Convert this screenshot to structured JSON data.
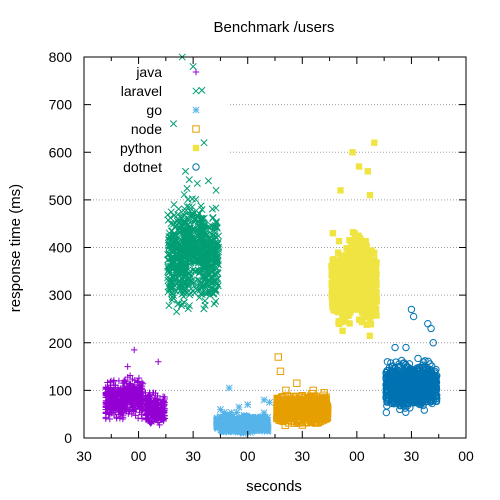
{
  "chart_data": {
    "type": "scatter",
    "title": "Benchmark /users",
    "xlabel": "seconds",
    "ylabel": "response time (ms)",
    "xlim": [
      0,
      35
    ],
    "ylim": [
      0,
      800
    ],
    "x_ticks": [
      {
        "x": 0,
        "label": "30"
      },
      {
        "x": 5,
        "label": "00"
      },
      {
        "x": 10,
        "label": "30"
      },
      {
        "x": 15,
        "label": "00"
      },
      {
        "x": 20,
        "label": "30"
      },
      {
        "x": 25,
        "label": "00"
      },
      {
        "x": 30,
        "label": "30"
      },
      {
        "x": 35,
        "label": "00"
      }
    ],
    "y_ticks": [
      0,
      100,
      200,
      300,
      400,
      500,
      600,
      700,
      800
    ],
    "grid": "horizontal dotted",
    "legend_position": "top-left",
    "series": [
      {
        "name": "java",
        "marker": "plus",
        "color": "#9400d3",
        "x_range": [
          2.0,
          7.5
        ],
        "points": [
          [
            2.5,
            85
          ],
          [
            3.2,
            120
          ],
          [
            4.0,
            150
          ],
          [
            4.6,
            185
          ],
          [
            5.1,
            110
          ],
          [
            6.0,
            95
          ],
          [
            6.8,
            160
          ],
          [
            7.2,
            70
          ]
        ],
        "cluster": [
          [
            2.8,
            80,
            25
          ],
          [
            4.5,
            85,
            25
          ],
          [
            6.5,
            60,
            20
          ]
        ]
      },
      {
        "name": "laravel",
        "marker": "cross",
        "color": "#009e73",
        "x_range": [
          7.5,
          12.5
        ],
        "points": [
          [
            8.2,
            660
          ],
          [
            9.0,
            800
          ],
          [
            9.3,
            560
          ],
          [
            10.0,
            780
          ],
          [
            10.8,
            730
          ],
          [
            11.4,
            540
          ],
          [
            12.1,
            520
          ],
          [
            11.0,
            620
          ]
        ],
        "cluster": [
          [
            8.5,
            380,
            70
          ],
          [
            10.0,
            400,
            70
          ],
          [
            11.5,
            380,
            60
          ]
        ]
      },
      {
        "name": "go",
        "marker": "star",
        "color": "#56b4e9",
        "x_range": [
          12.0,
          17.5
        ],
        "points": [
          [
            12.5,
            60
          ],
          [
            13.3,
            105
          ],
          [
            14.2,
            65
          ],
          [
            15.0,
            70
          ],
          [
            16.5,
            80
          ],
          [
            17.0,
            75
          ]
        ],
        "cluster": [
          [
            13.5,
            30,
            12
          ],
          [
            15.5,
            30,
            12
          ]
        ]
      },
      {
        "name": "node",
        "marker": "open-square",
        "color": "#e69f00",
        "x_range": [
          17.5,
          22.5
        ],
        "points": [
          [
            17.8,
            170
          ],
          [
            18.0,
            140
          ],
          [
            18.5,
            100
          ],
          [
            19.5,
            115
          ],
          [
            21.0,
            100
          ],
          [
            22.0,
            95
          ]
        ],
        "cluster": [
          [
            18.5,
            60,
            18
          ],
          [
            20.0,
            60,
            18
          ],
          [
            21.5,
            60,
            18
          ]
        ]
      },
      {
        "name": "python",
        "marker": "filled-square",
        "color": "#f0e442",
        "x_range": [
          22.5,
          27.5
        ],
        "points": [
          [
            22.8,
            430
          ],
          [
            23.5,
            520
          ],
          [
            24.6,
            600
          ],
          [
            25.2,
            570
          ],
          [
            26.0,
            560
          ],
          [
            26.6,
            620
          ],
          [
            26.2,
            510
          ]
        ],
        "cluster": [
          [
            23.5,
            320,
            50
          ],
          [
            25.0,
            340,
            60
          ],
          [
            26.0,
            320,
            50
          ]
        ]
      },
      {
        "name": "dotnet",
        "marker": "open-circle",
        "color": "#0072b2",
        "x_range": [
          27.5,
          32.5
        ],
        "points": [
          [
            27.8,
            160
          ],
          [
            28.5,
            190
          ],
          [
            29.5,
            190
          ],
          [
            30.0,
            270
          ],
          [
            30.2,
            255
          ],
          [
            31.5,
            240
          ],
          [
            31.8,
            230
          ],
          [
            32.0,
            200
          ]
        ],
        "cluster": [
          [
            28.5,
            110,
            30
          ],
          [
            30.0,
            110,
            30
          ],
          [
            31.5,
            110,
            30
          ]
        ]
      }
    ]
  }
}
